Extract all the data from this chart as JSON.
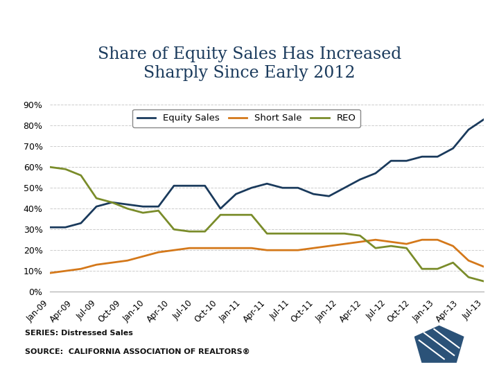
{
  "title": "Share of Equity Sales Has Increased\nSharply Since Early 2012",
  "title_color": "#1a3a5c",
  "background_color": "#ffffff",
  "header_color": "#2b5278",
  "series_colors": {
    "equity": "#1a3a5c",
    "short_sale": "#d4781a",
    "reo": "#7a8c2a"
  },
  "legend_labels": [
    "Equity Sales",
    "Short Sale",
    "REO"
  ],
  "xtick_labels": [
    "Jan-09",
    "Apr-09",
    "Jul-09",
    "Oct-09",
    "Jan-10",
    "Apr-10",
    "Jul-10",
    "Oct-10",
    "Jan-11",
    "Apr-11",
    "Jul-11",
    "Oct-11",
    "Jan-12",
    "Apr-12",
    "Jul-12",
    "Oct-12",
    "Jan-13",
    "Apr-13",
    "Jul-13"
  ],
  "equity_sales": [
    31,
    31,
    33,
    41,
    43,
    42,
    41,
    41,
    51,
    51,
    51,
    40,
    47,
    50,
    52,
    50,
    50,
    47,
    46,
    50,
    54,
    57,
    63,
    63,
    65,
    65,
    69,
    78,
    83
  ],
  "short_sale": [
    9,
    10,
    11,
    13,
    14,
    15,
    17,
    19,
    20,
    21,
    21,
    21,
    21,
    21,
    20,
    20,
    20,
    21,
    22,
    23,
    24,
    25,
    24,
    23,
    25,
    25,
    22,
    15,
    12
  ],
  "reo": [
    60,
    59,
    56,
    45,
    43,
    40,
    38,
    39,
    30,
    29,
    29,
    37,
    37,
    37,
    28,
    28,
    28,
    28,
    28,
    28,
    27,
    21,
    22,
    21,
    11,
    11,
    14,
    7,
    5
  ],
  "source_line1": "SERIES: Distressed Sales",
  "source_line2": "SOURCE:  CALIFORNIA ASSOCIATION OF REALTORS®",
  "line_width": 2.0,
  "ylim": [
    0,
    90
  ],
  "yticks": [
    0,
    10,
    20,
    30,
    40,
    50,
    60,
    70,
    80,
    90
  ]
}
